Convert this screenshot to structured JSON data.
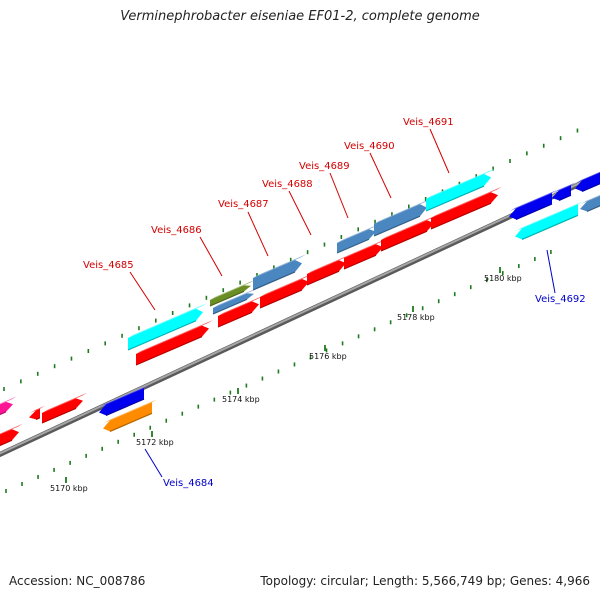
{
  "title": "Verminephrobacter eiseniae EF01-2, complete genome",
  "footer": {
    "accession": "Accession: NC_008786",
    "summary": "Topology: circular; Length: 5,566,749 bp; Genes: 4,966"
  },
  "colors": {
    "backbone": "#808080",
    "tick": "#1e7a1e",
    "label_upper": "#d40000",
    "label_lower": "#0000cc",
    "red": "#ff0000",
    "cyan": "#00ffff",
    "steelblue": "#4a86c0",
    "olive": "#6b8e23",
    "blue": "#0000ee",
    "orange": "#ff8c00",
    "magenta": "#ff1493"
  },
  "kbp_labels": [
    "5170 kbp",
    "5172 kbp",
    "5174 kbp",
    "5176 kbp",
    "5178 kbp",
    "5180 kbp"
  ],
  "gene_labels": [
    {
      "text": "Veis_4684",
      "strand": "lower"
    },
    {
      "text": "Veis_4685",
      "strand": "upper"
    },
    {
      "text": "Veis_4686",
      "strand": "upper"
    },
    {
      "text": "Veis_4687",
      "strand": "upper"
    },
    {
      "text": "Veis_4688",
      "strand": "upper"
    },
    {
      "text": "Veis_4689",
      "strand": "upper"
    },
    {
      "text": "Veis_4690",
      "strand": "upper"
    },
    {
      "text": "Veis_4691",
      "strand": "upper"
    },
    {
      "text": "Veis_4692",
      "strand": "lower"
    }
  ]
}
